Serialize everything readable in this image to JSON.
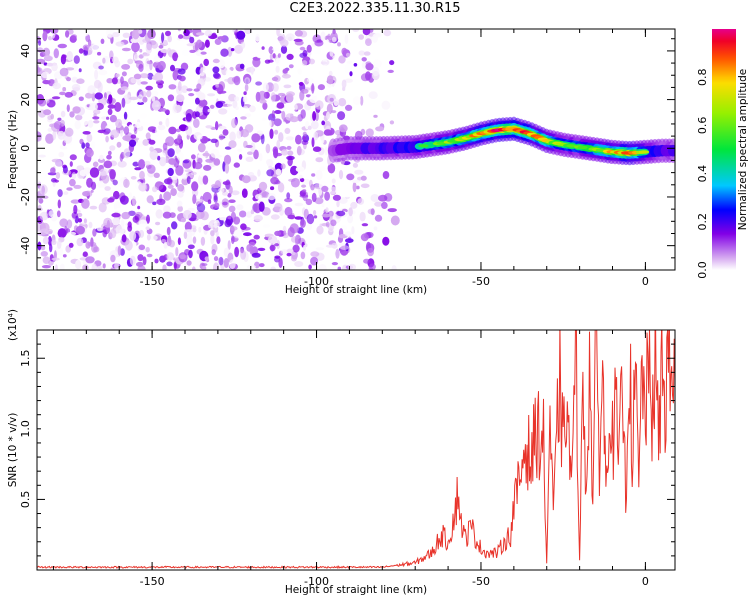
{
  "title": "C2E3.2022.335.11.30.R15",
  "chart_data": [
    {
      "type": "heatmap",
      "xlabel": "Height of straight line (km)",
      "ylabel": "Frequency (Hz)",
      "xlim": [
        -185,
        9
      ],
      "ylim": [
        -50,
        49
      ],
      "x_ticks": [
        -150,
        -100,
        -50,
        0
      ],
      "x_tick_labels": [
        "-150",
        "-100",
        "-50",
        "0"
      ],
      "y_ticks": [
        -40,
        -20,
        0,
        20,
        40
      ],
      "y_tick_labels": [
        "-40",
        "-20",
        "0",
        "20",
        "40"
      ],
      "noise_region_x": [
        -185,
        -76
      ],
      "signal_ridge": {
        "x": [
          -95,
          -90,
          -80,
          -70,
          -60,
          -55,
          -50,
          -45,
          -40,
          -35,
          -30,
          -25,
          -20,
          -15,
          -10,
          -5,
          0,
          5,
          9
        ],
        "y": [
          -1,
          0,
          0,
          0.5,
          2.5,
          4,
          6,
          7.5,
          8,
          6,
          3,
          1.5,
          0.5,
          -0.5,
          -1.5,
          -2,
          -1.5,
          -1,
          -1
        ],
        "amplitude": [
          0.25,
          0.35,
          0.45,
          0.5,
          0.6,
          0.7,
          0.8,
          0.9,
          0.92,
          0.85,
          0.7,
          0.6,
          0.55,
          0.65,
          0.75,
          0.85,
          0.6,
          0.45,
          0.4
        ]
      },
      "colorbar": {
        "label": "Normalized spectral amplitude",
        "range": [
          0,
          1
        ],
        "ticks": [
          0.0,
          0.2,
          0.4,
          0.6,
          0.8
        ],
        "tick_labels": [
          "0.0",
          "0.2",
          "0.4",
          "0.6",
          "0.8"
        ]
      }
    },
    {
      "type": "line",
      "xlabel": "Height of straight line (km)",
      "ylabel": "SNR (10 * v/v)",
      "y_multiplier": "(x10⁴)",
      "xlim": [
        -185,
        9
      ],
      "ylim": [
        0,
        1.7
      ],
      "x_ticks": [
        -150,
        -100,
        -50,
        0
      ],
      "x_tick_labels": [
        "-150",
        "-100",
        "-50",
        "0"
      ],
      "y_ticks": [
        0.5,
        1.0,
        1.5
      ],
      "y_tick_labels": [
        "0.5",
        "1.0",
        "1.5"
      ],
      "color": "#e8332a",
      "series": [
        {
          "x": [
            -185,
            -150,
            -100,
            -80,
            -70,
            -65,
            -62,
            -60,
            -58,
            -57,
            -56,
            -55,
            -53,
            -50,
            -48,
            -45,
            -43,
            -41,
            -40,
            -38,
            -37,
            -36,
            -35,
            -33,
            -31,
            -30,
            -29,
            -28,
            -27,
            -26,
            -25,
            -24,
            -23,
            -22,
            -21,
            -20,
            -19,
            -18,
            -17,
            -16,
            -15,
            -14,
            -13,
            -12,
            -11,
            -10,
            -9,
            -8,
            -7,
            -6,
            -5,
            -4,
            -3,
            -2,
            -1,
            0,
            1,
            2,
            3,
            4,
            5,
            6,
            7,
            8,
            9
          ],
          "y": [
            0.02,
            0.02,
            0.02,
            0.02,
            0.05,
            0.12,
            0.25,
            0.2,
            0.4,
            0.55,
            0.35,
            0.22,
            0.3,
            0.15,
            0.12,
            0.12,
            0.2,
            0.25,
            0.45,
            0.65,
            0.85,
            0.9,
            0.75,
            1.0,
            0.9,
            0.05,
            1.1,
            0.35,
            0.9,
            1.35,
            0.8,
            1.3,
            0.7,
            0.9,
            1.45,
            0.1,
            1.25,
            0.6,
            1.45,
            0.5,
            1.6,
            0.8,
            1.4,
            0.55,
            1.3,
            0.9,
            1.15,
            0.7,
            1.4,
            0.5,
            1.55,
            0.85,
            1.3,
            0.6,
            1.4,
            1.15,
            1.35,
            1.1,
            1.5,
            0.85,
            1.45,
            1.2,
            1.5,
            1.35,
            1.35
          ]
        }
      ]
    }
  ]
}
